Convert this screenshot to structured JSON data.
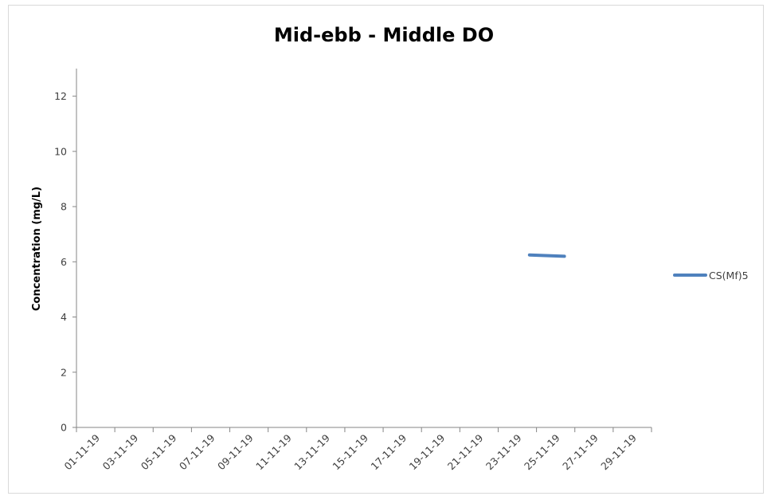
{
  "chart_data": {
    "type": "line",
    "title": "Mid-ebb - Middle DO",
    "xlabel": "",
    "ylabel": "Concentration (mg/L)",
    "ylim": [
      0,
      13
    ],
    "yticks": [
      0,
      2,
      4,
      6,
      8,
      10,
      12
    ],
    "xlim": [
      "2019-11-01",
      "2019-12-04"
    ],
    "xticks": [
      "01-11-19",
      "03-11-19",
      "05-11-19",
      "07-11-19",
      "09-11-19",
      "11-11-19",
      "13-11-19",
      "15-11-19",
      "17-11-19",
      "19-11-19",
      "21-11-19",
      "23-11-19",
      "25-11-19",
      "27-11-19",
      "29-11-19"
    ],
    "grid": false,
    "legend_position": "right",
    "series": [
      {
        "name": "CS(Mf)5",
        "color": "#4f81bd",
        "points": [
          {
            "x": "2019-11-27",
            "y": 6.25
          },
          {
            "x": "2019-11-29",
            "y": 6.2
          }
        ]
      }
    ]
  }
}
